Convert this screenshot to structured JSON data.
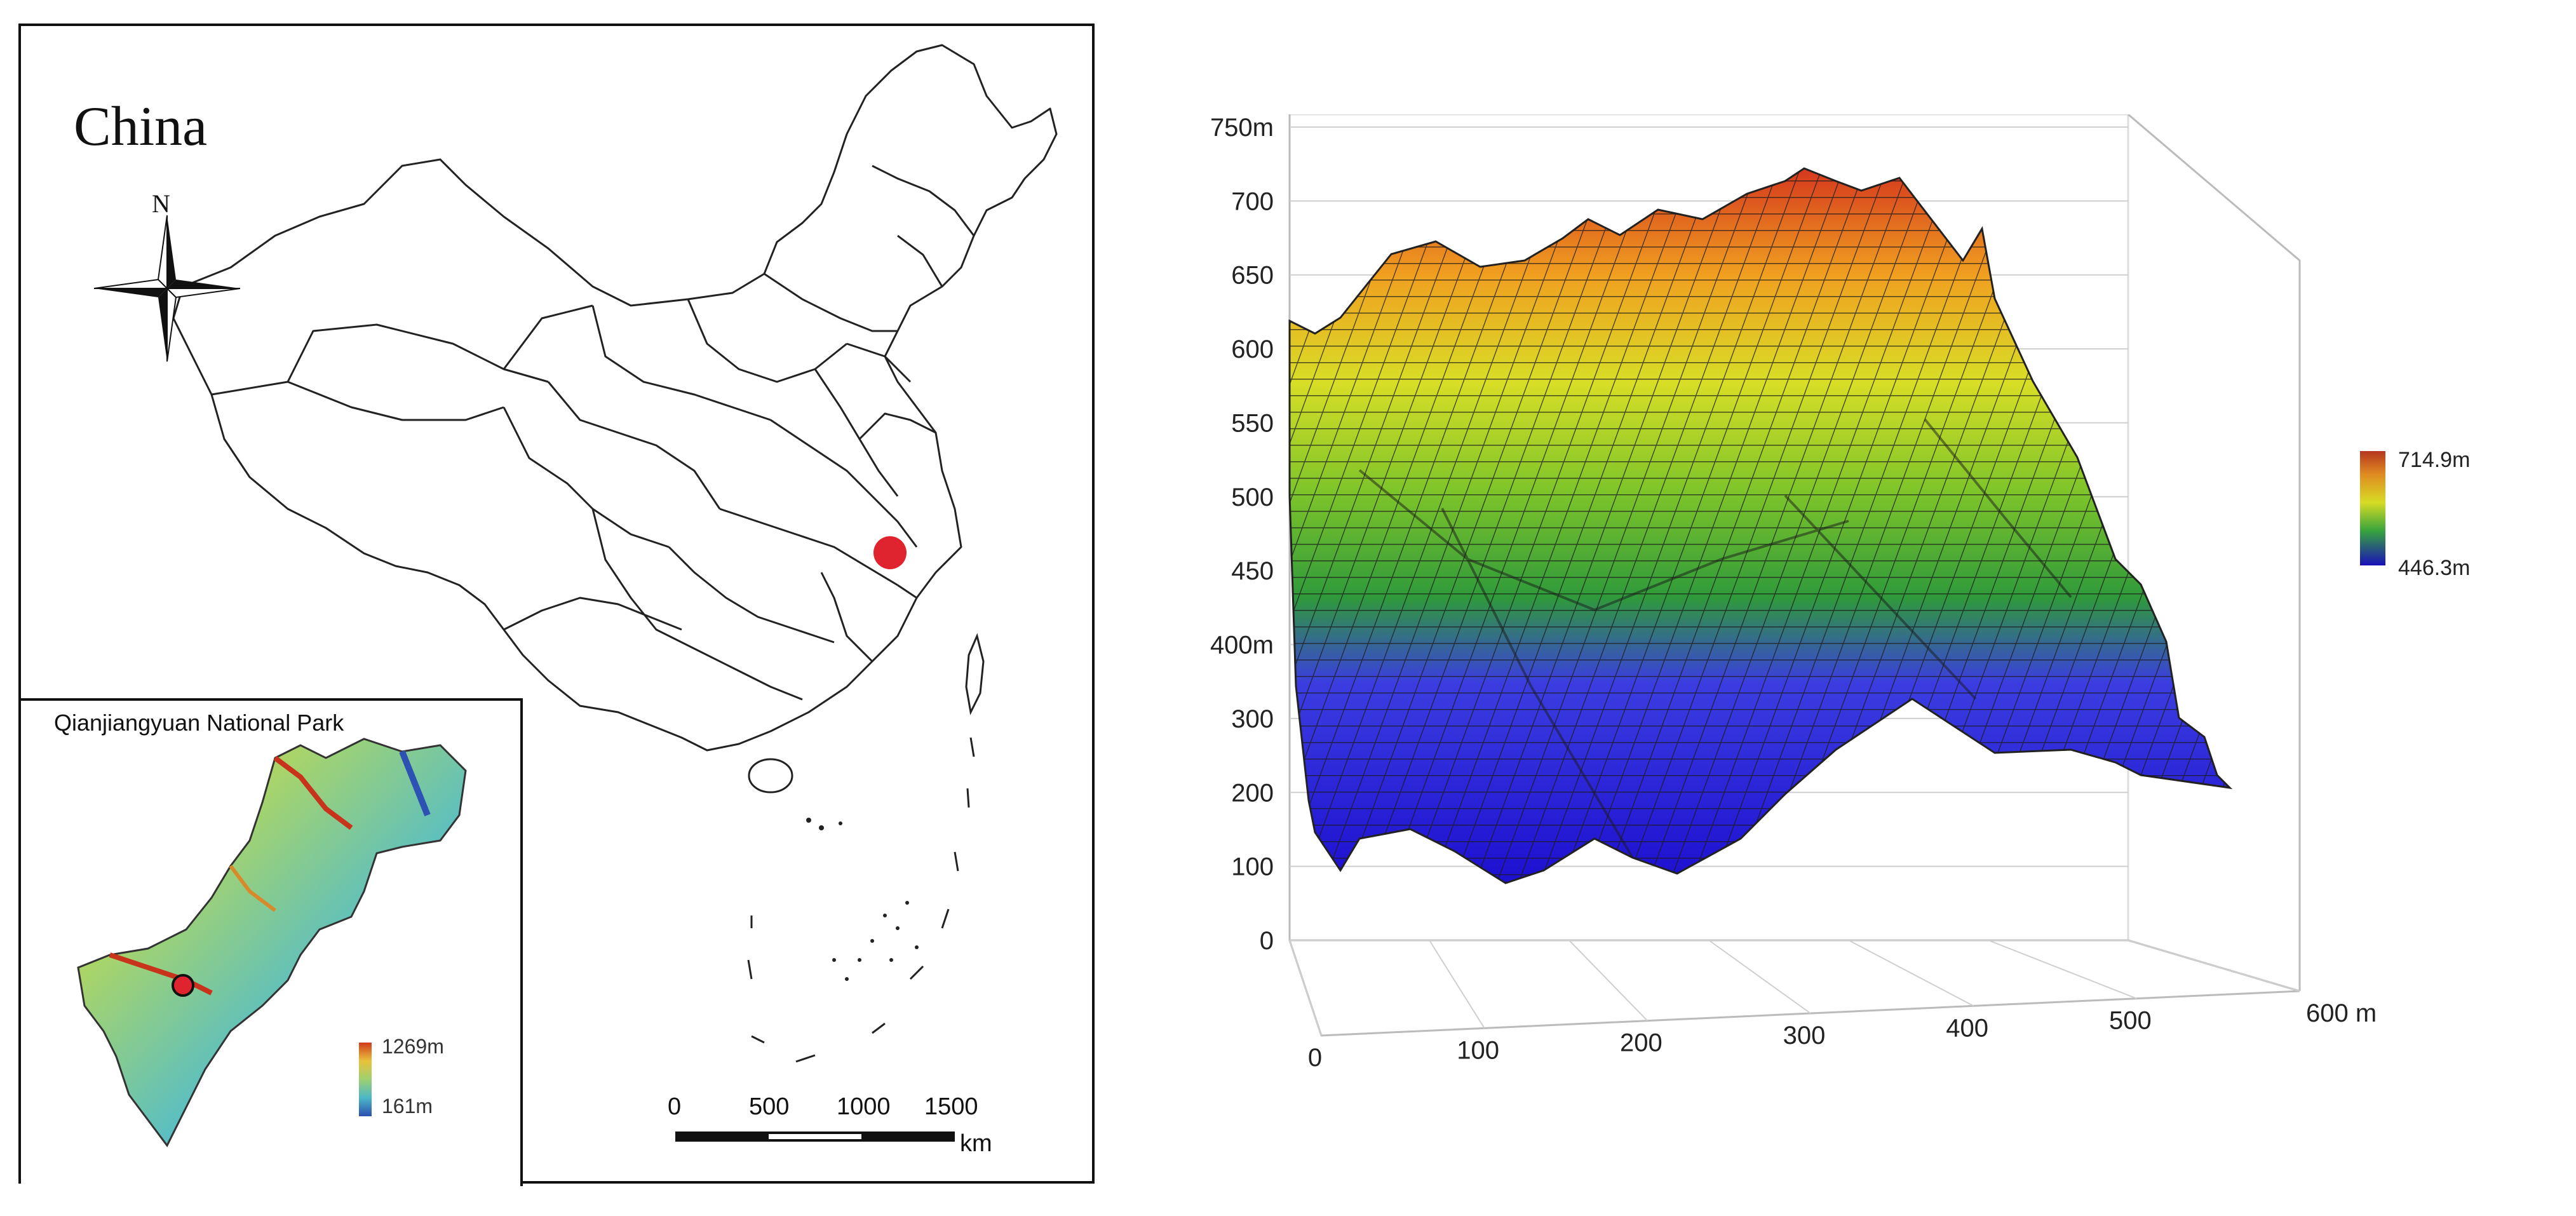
{
  "map": {
    "title": "China",
    "north_label": "N",
    "inset": {
      "title": "Qianjiangyuan National Park",
      "legend_max": "1269m",
      "legend_min": "161m"
    },
    "scale_bar": {
      "ticks": [
        "0",
        "500",
        "1000",
        "1500"
      ],
      "unit": "km"
    },
    "marker_color": "#e0242f"
  },
  "chart_data": {
    "type": "surface",
    "z_ticks": [
      "750m",
      "700",
      "650",
      "600",
      "550",
      "500",
      "450",
      "400m",
      "300",
      "200",
      "100",
      "0"
    ],
    "x_ticks": [
      "0",
      "100",
      "200",
      "300",
      "400",
      "500",
      "600 m"
    ],
    "zlim": [
      0,
      750
    ],
    "xlim": [
      0,
      600
    ],
    "elevation_range": [
      446.3,
      714.9
    ],
    "legend_max": "714.9m",
    "legend_min": "446.3m",
    "colormap": [
      "#1d0fd0",
      "#3b3de0",
      "#2f9a3a",
      "#7fc52a",
      "#d8de26",
      "#f0a020",
      "#d5381e"
    ],
    "grid": true
  }
}
